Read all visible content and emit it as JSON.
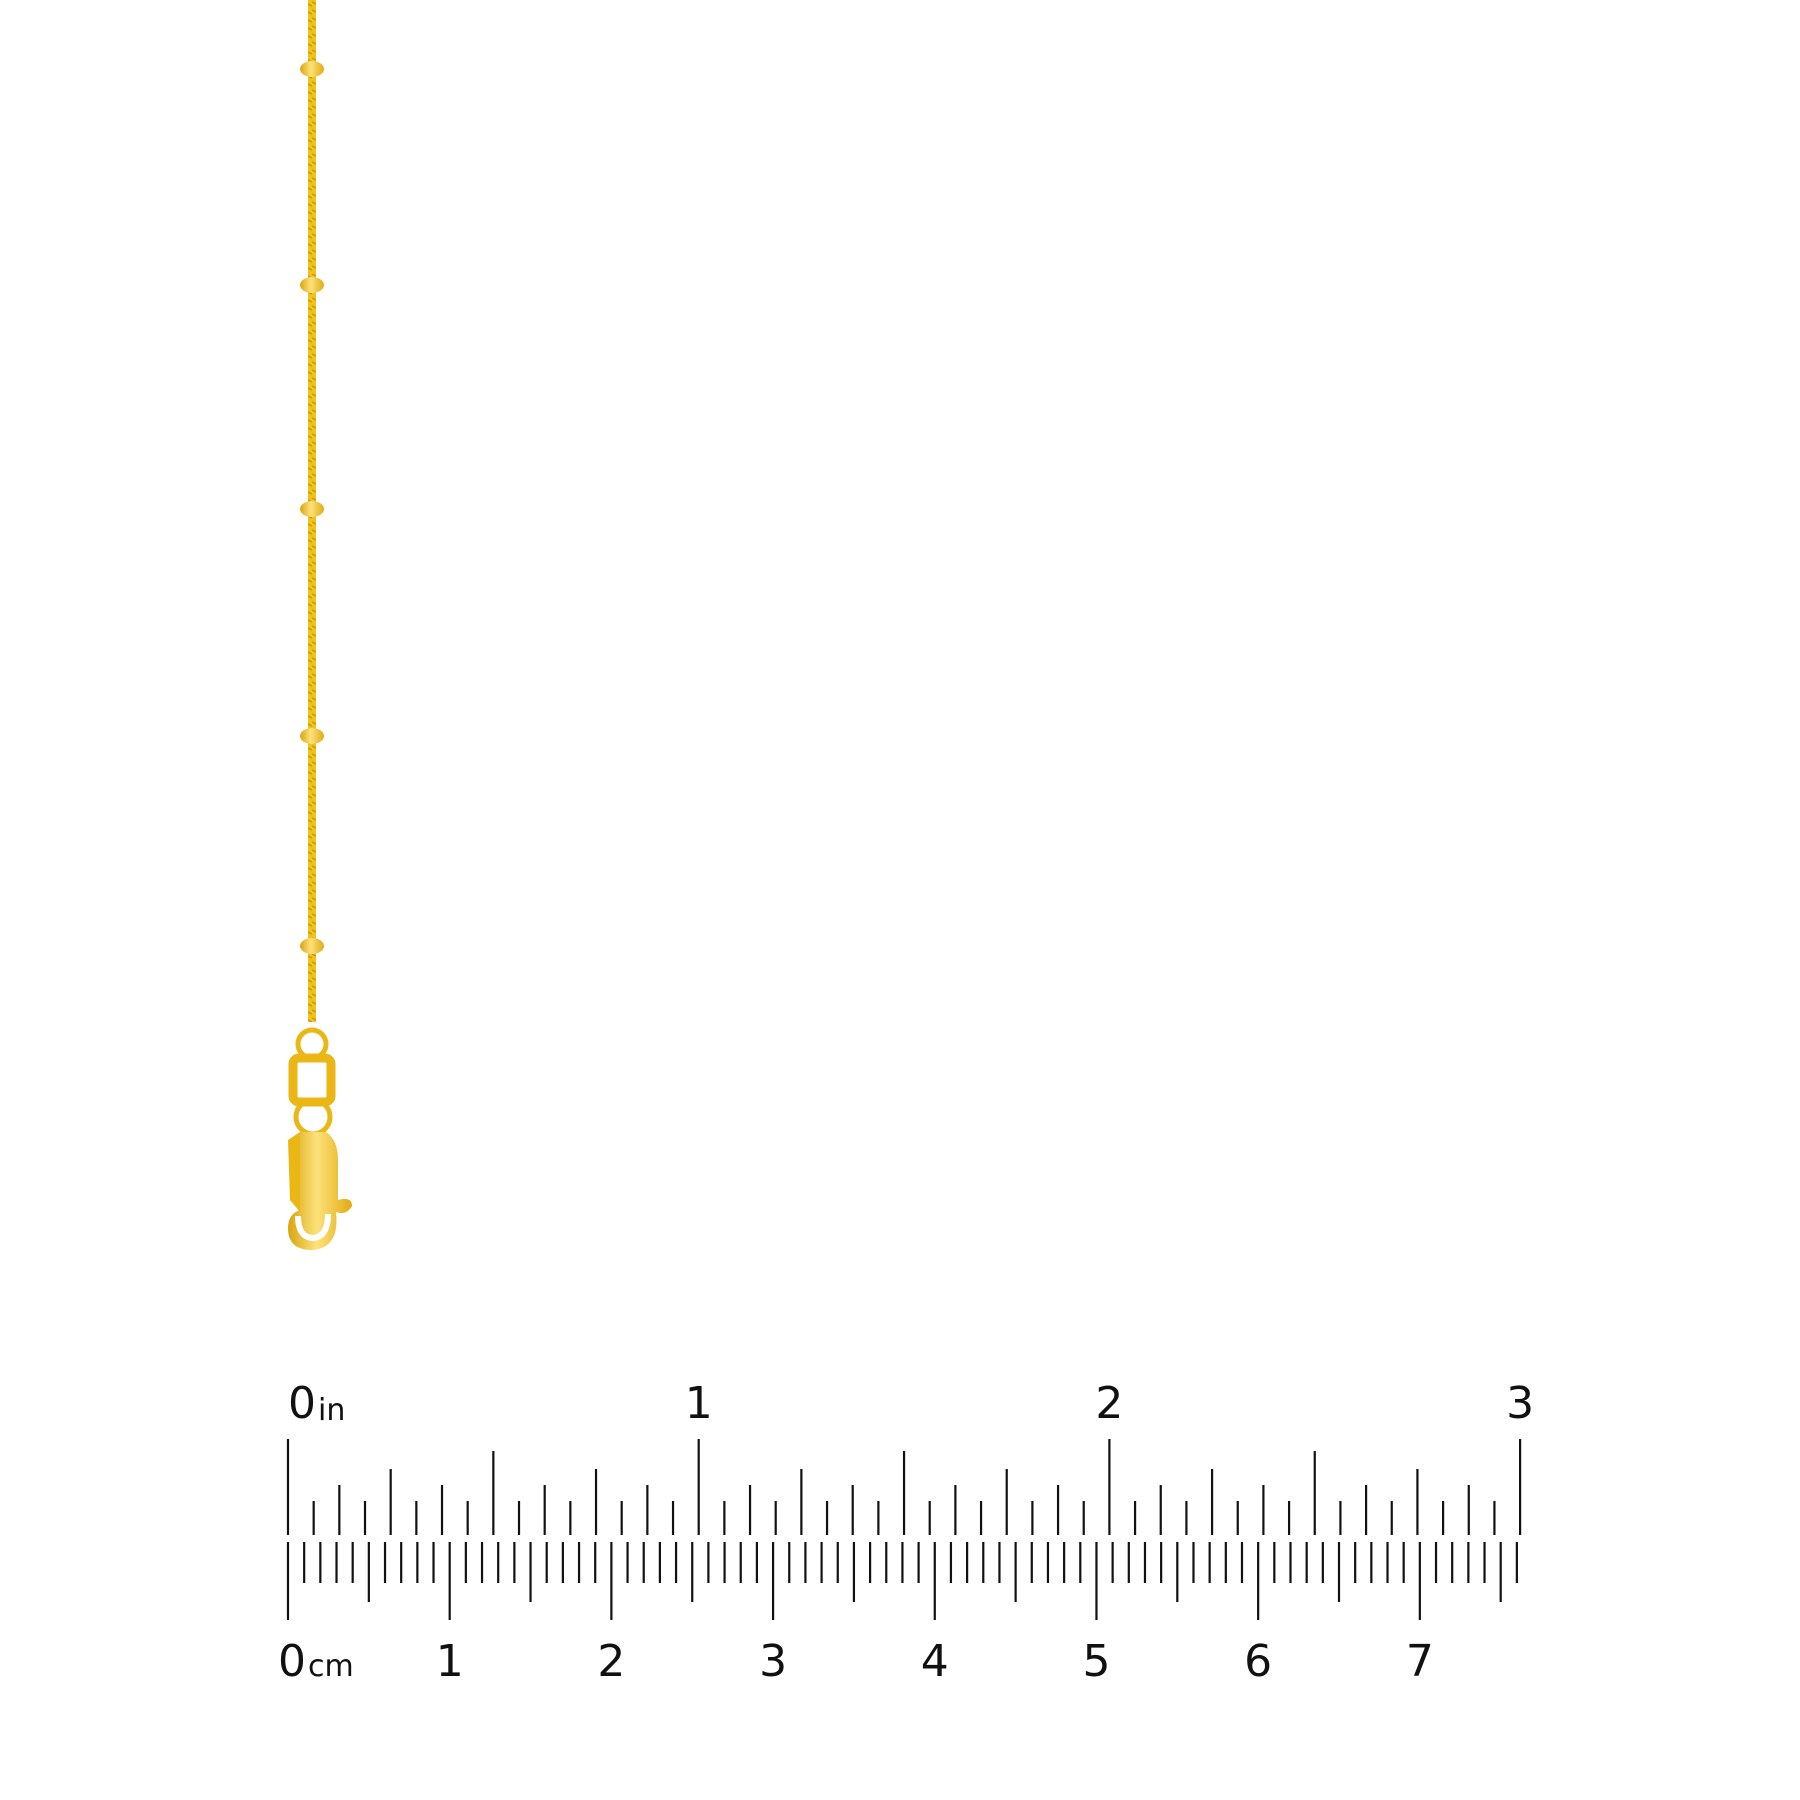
{
  "product": {
    "item": "gold-satellite-bead-chain",
    "colors": {
      "gold": "#f2c21b",
      "gold_dark": "#d9a40f",
      "gold_light": "#fde27a"
    },
    "bead_count_visible": 5
  },
  "ruler": {
    "inch": {
      "unit_label": "in",
      "labels": [
        "0",
        "1",
        "2",
        "3"
      ],
      "max": 3,
      "subdivisions_per_unit": 16
    },
    "cm": {
      "unit_label": "cm",
      "labels": [
        "0",
        "1",
        "2",
        "3",
        "4",
        "5",
        "6",
        "7"
      ],
      "max_mm": 76
    },
    "tick_color": "#111111"
  }
}
